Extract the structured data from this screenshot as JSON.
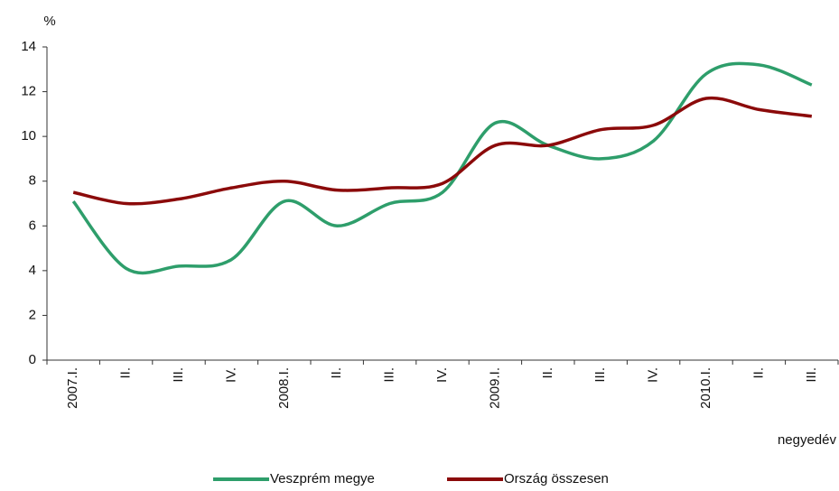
{
  "chart_data": {
    "type": "line",
    "y_label": "%",
    "x_label": "negyedév",
    "categories": [
      "2007.I.",
      "II.",
      "III.",
      "IV.",
      "2008.I.",
      "II.",
      "III.",
      "IV.",
      "2009.I.",
      "II.",
      "III.",
      "IV.",
      "2010.I.",
      "II.",
      "III."
    ],
    "series": [
      {
        "name": "Veszprém megye",
        "color": "#2e9e6b",
        "values": [
          7.1,
          4.1,
          4.2,
          4.5,
          7.1,
          6.0,
          7.0,
          7.5,
          10.6,
          9.6,
          9.0,
          9.8,
          12.8,
          13.2,
          12.3
        ]
      },
      {
        "name": "Ország összesen",
        "color": "#8b0a0a",
        "values": [
          7.5,
          7.0,
          7.2,
          7.7,
          8.0,
          7.6,
          7.7,
          7.9,
          9.6,
          9.6,
          10.3,
          10.5,
          11.7,
          11.2,
          10.9
        ]
      }
    ],
    "ylim": [
      0,
      14
    ],
    "yticks": [
      0,
      2,
      4,
      6,
      8,
      10,
      12,
      14
    ],
    "grid": false
  }
}
